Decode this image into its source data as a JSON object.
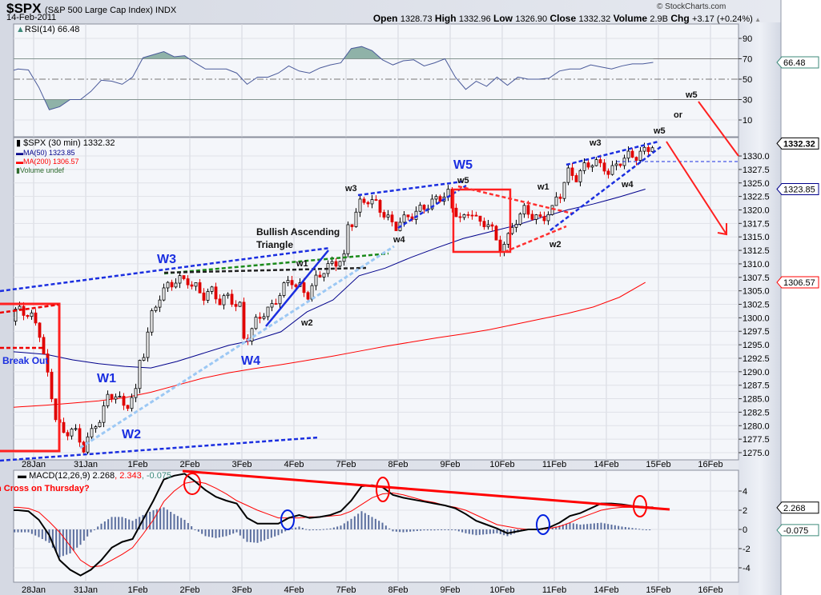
{
  "header": {
    "symbol": "$SPX",
    "name": "(S&P 500 Large Cap Index) INDX",
    "date": "14-Feb-2011",
    "copyright": "© StockCharts.com",
    "quote": [
      {
        "label": "Open",
        "value": "1328.73"
      },
      {
        "label": "High",
        "value": "1332.96"
      },
      {
        "label": "Low",
        "value": "1326.90"
      },
      {
        "label": "Close",
        "value": "1332.32"
      },
      {
        "label": "Volume",
        "value": "2.9B"
      },
      {
        "label": "Chg",
        "value": "+3.17 (+0.24%)"
      }
    ],
    "change_direction": "up"
  },
  "chart_data": [
    {
      "type": "line",
      "panel": "rsi",
      "legend": "RSI(14) 66.48",
      "last_label": "66.48",
      "ylim": [
        0,
        100
      ],
      "yticks": [
        "90",
        "70",
        "50",
        "30",
        "10"
      ],
      "levels": [
        70,
        50,
        30
      ],
      "series": {
        "27Jan": [
          55,
          56,
          57,
          60,
          59
        ],
        "28Jan": [
          42,
          20,
          23,
          30,
          30
        ],
        "31Jan": [
          38,
          49,
          48,
          45,
          52
        ],
        "1Feb": [
          71,
          74,
          77,
          72,
          73
        ],
        "2Feb": [
          66,
          60,
          60,
          60,
          56
        ],
        "3Feb": [
          45,
          52,
          52,
          56,
          63
        ],
        "4Feb": [
          58,
          56,
          61,
          64,
          66
        ],
        "7Feb": [
          80,
          82,
          78,
          69,
          64
        ],
        "8Feb": [
          68,
          69,
          63,
          66,
          70
        ],
        "9Feb": [
          52,
          40,
          48,
          43,
          52
        ],
        "10Feb": [
          44,
          52,
          50,
          50,
          51
        ],
        "11Feb": [
          58,
          60,
          60,
          64,
          62
        ],
        "14Feb": [
          60,
          63,
          65,
          65,
          66.48
        ]
      },
      "colors": {
        "line": "#4a5a9a",
        "fill": "#8fb2a8"
      }
    },
    {
      "type": "candlestick",
      "panel": "price",
      "legend": {
        "title": "$SPX (30 min) 1332.32",
        "ma50": "MA(50) 1323.85",
        "ma200": "MA(200) 1306.57",
        "volume": "Volume undef"
      },
      "last_labels": {
        "close": "1332.32",
        "ma50": "1323.85",
        "ma200": "1306.57"
      },
      "ylim": [
        1274,
        1334
      ],
      "yticks": [
        "1330.0",
        "1327.5",
        "1325.0",
        "1322.5",
        "1320.0",
        "1317.5",
        "1315.0",
        "1312.5",
        "1310.0",
        "1307.5",
        "1305.0",
        "1302.5",
        "1300.0",
        "1297.5",
        "1295.0",
        "1292.5",
        "1290.0",
        "1287.5",
        "1285.0",
        "1282.5",
        "1280.0",
        "1277.5",
        "1275.0"
      ],
      "xticks": [
        "28Jan",
        "31Jan",
        "1Feb",
        "2Feb",
        "3Feb",
        "4Feb",
        "7Feb",
        "8Feb",
        "9Feb",
        "10Feb",
        "11Feb",
        "14Feb",
        "15Feb",
        "16Feb"
      ],
      "days": [
        "27Jan",
        "28Jan",
        "31Jan",
        "1Feb",
        "2Feb",
        "3Feb",
        "4Feb",
        "7Feb",
        "8Feb",
        "9Feb",
        "10Feb",
        "11Feb",
        "14Feb"
      ],
      "closes": {
        "27Jan": [
          1299,
          1301,
          1298,
          1300,
          1302,
          1300
        ],
        "28Jan": [
          1299,
          1290,
          1282,
          1278,
          1280,
          1276
        ],
        "31Jan": [
          1278,
          1281,
          1285,
          1286,
          1283,
          1286
        ],
        "1Feb": [
          1292,
          1300,
          1304,
          1306,
          1307,
          1307
        ],
        "2Feb": [
          1306,
          1304,
          1305,
          1303,
          1304,
          1302
        ],
        "3Feb": [
          1296,
          1299,
          1301,
          1302,
          1305,
          1307
        ],
        "4Feb": [
          1306,
          1304,
          1307,
          1309,
          1310,
          1311
        ],
        "7Feb": [
          1317,
          1321,
          1322,
          1321,
          1319,
          1317
        ],
        "8Feb": [
          1318,
          1319,
          1320,
          1321,
          1322,
          1323
        ],
        "9Feb": [
          1320,
          1318,
          1320,
          1317,
          1318,
          1313
        ],
        "10Feb": [
          1314,
          1318,
          1320,
          1319,
          1318,
          1320
        ],
        "11Feb": [
          1322,
          1327,
          1326,
          1328,
          1329,
          1328
        ],
        "14Feb": [
          1327,
          1329,
          1330,
          1330,
          1331,
          1332.32
        ]
      },
      "ma50": {
        "27Jan": [
          1294,
          1293.6
        ],
        "28Jan": [
          1293.2,
          1292.2
        ],
        "31Jan": [
          1291.5,
          1291
        ],
        "1Feb": [
          1290.7,
          1291.9
        ],
        "2Feb": [
          1293.4,
          1294.9
        ],
        "3Feb": [
          1295.9,
          1297.4
        ],
        "4Feb": [
          1301.1,
          1303.3
        ],
        "7Feb": [
          1307.8,
          1309.2
        ],
        "8Feb": [
          1311.2,
          1313
        ],
        "9Feb": [
          1314.7,
          1315.9
        ],
        "10Feb": [
          1317.1,
          1318.6
        ],
        "11Feb": [
          1320,
          1321.1
        ],
        "14Feb": [
          1322.4,
          1323.85
        ]
      },
      "ma200": {
        "27Jan": [
          1283.2,
          1283.5
        ],
        "28Jan": [
          1283.8,
          1284.2
        ],
        "31Jan": [
          1284.6,
          1285.2
        ],
        "1Feb": [
          1286.2,
          1287.5
        ],
        "2Feb": [
          1288.8,
          1289.8
        ],
        "3Feb": [
          1290.6,
          1291.3
        ],
        "4Feb": [
          1292.1,
          1292.9
        ],
        "7Feb": [
          1293.8,
          1294.7
        ],
        "8Feb": [
          1295.5,
          1296.3
        ],
        "9Feb": [
          1297,
          1297.8
        ],
        "10Feb": [
          1298.8,
          1299.8
        ],
        "11Feb": [
          1300.8,
          1302
        ],
        "14Feb": [
          1303.8,
          1306.57
        ]
      },
      "colors": {
        "up": "#ffffff",
        "down": "#e00000",
        "ma50": "#00008b",
        "ma200": "#ff0000",
        "volume": "#2e6b2e"
      }
    },
    {
      "type": "line",
      "panel": "macd",
      "legend": {
        "name": "MACD(12,26,9)",
        "macd": "2.268",
        "signal": "2.343",
        "histogram": "-0.075"
      },
      "ylim": [
        -5.5,
        6
      ],
      "yticks": [
        "4",
        "2",
        "0",
        "-2",
        "-4"
      ],
      "macd": {
        "27Jan": [
          2,
          2,
          2,
          2,
          1.9
        ],
        "28Jan": [
          1.0,
          -0.6,
          -3.2,
          -4.2,
          -4.8
        ],
        "31Jan": [
          -4.2,
          -3.2,
          -1.9,
          -1.3,
          -1.0
        ],
        "1Feb": [
          1.0,
          3.0,
          5.2,
          5.6,
          5.8
        ],
        "2Feb": [
          5.0,
          4.1,
          3.4,
          3.0,
          2.7
        ],
        "3Feb": [
          1.2,
          0.6,
          0.6,
          0.6,
          1.2
        ],
        "4Feb": [
          1.5,
          1.2,
          1.3,
          1.5,
          1.9
        ],
        "7Feb": [
          3.0,
          4.5,
          4.6,
          4.4,
          3.6
        ],
        "8Feb": [
          3.3,
          3.1,
          2.9,
          2.7,
          2.5
        ],
        "9Feb": [
          2.2,
          1.6,
          0.9,
          0.5,
          0.1
        ],
        "10Feb": [
          -0.4,
          -0.2,
          0,
          0,
          0.2
        ],
        "11Feb": [
          0.7,
          1.4,
          1.7,
          2.2,
          2.7
        ],
        "14Feb": [
          2.7,
          2.6,
          2.45,
          2.35,
          2.268
        ]
      },
      "signal": {
        "27Jan": [
          2.4,
          2.4,
          2.3,
          2.3,
          2.2
        ],
        "28Jan": [
          1.8,
          0.8,
          -0.3,
          -1.7,
          -3.2
        ],
        "31Jan": [
          -3.9,
          -3.8,
          -3.2,
          -2.6,
          -1.9
        ],
        "1Feb": [
          -0.5,
          1.0,
          2.9,
          4.0,
          4.8
        ],
        "2Feb": [
          5.0,
          4.8,
          4.3,
          3.7,
          3.0
        ],
        "3Feb": [
          2.5,
          2.0,
          1.6,
          1.2,
          1.2
        ],
        "4Feb": [
          1.2,
          1.3,
          1.3,
          1.4,
          1.5
        ],
        "7Feb": [
          1.9,
          2.6,
          3.3,
          3.7,
          3.8
        ],
        "8Feb": [
          3.6,
          3.3,
          3.0,
          2.8,
          2.5
        ],
        "9Feb": [
          2.3,
          2.0,
          1.5,
          1.0,
          0.5
        ],
        "10Feb": [
          0.3,
          0.1,
          0,
          0,
          0.1
        ],
        "11Feb": [
          0.3,
          0.7,
          1.2,
          1.6,
          2.0
        ],
        "14Feb": [
          2.2,
          2.3,
          2.3,
          2.33,
          2.343
        ]
      },
      "colors": {
        "macd": "#000000",
        "signal": "#ff0000",
        "histogram": "#5a6e9e",
        "histogram_label": "#3d8a7a"
      }
    }
  ],
  "annotations": {
    "break_out": "Break Out",
    "triangle_line1": "Bullish Ascending",
    "triangle_line2": "Triangle",
    "W1": "W1",
    "W2": "W2",
    "W3": "W3",
    "W4": "W4",
    "W5": "W5",
    "w1a": "w1",
    "w2a": "w2",
    "w3a": "w3",
    "w4a": "w4",
    "w5a": "w5",
    "w1b": "w1",
    "w2b": "w2",
    "w3b": "w3",
    "w4b": "w4",
    "w5b": "w5",
    "or": "or",
    "w5c": "w5",
    "macd_note": "n Cross on Thursday?"
  }
}
